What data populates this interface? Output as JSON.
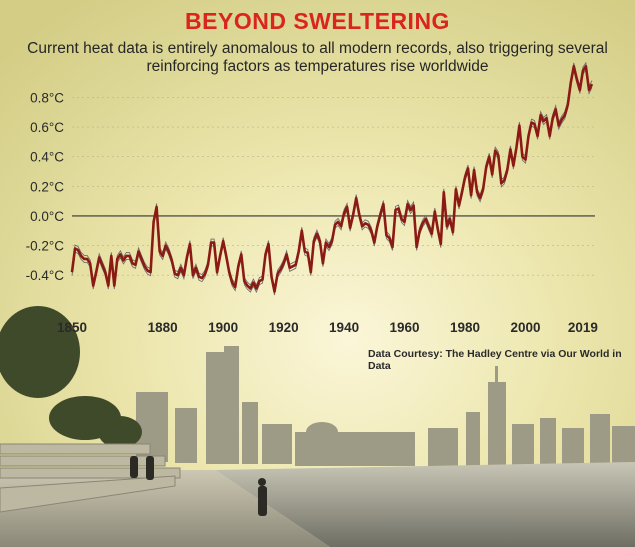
{
  "header": {
    "title": "BEYOND SWELTERING",
    "subtitle": "Current heat data is entirely anomalous to all modern records, also triggering several reinforcing factors as temperatures rise worldwide"
  },
  "credit": "Data Courtesy: The Hadley Centre via Our World in Data",
  "colors": {
    "series": "#8b1a14",
    "band": "#6e6e6e",
    "title": "#d9251d",
    "baseline": "#333333"
  },
  "chart_data": {
    "type": "line",
    "title": "BEYOND SWELTERING",
    "xlabel": "",
    "ylabel": "",
    "xlim": [
      1850,
      2023
    ],
    "ylim": [
      -0.5,
      0.85
    ],
    "baseline": 0.0,
    "grid": true,
    "y_ticks": [
      {
        "value": 0.8,
        "label": "0.8°C"
      },
      {
        "value": 0.6,
        "label": "0.6°C"
      },
      {
        "value": 0.4,
        "label": "0.4°C"
      },
      {
        "value": 0.2,
        "label": "0.2°C"
      },
      {
        "value": 0.0,
        "label": "0.0°C"
      },
      {
        "value": -0.2,
        "label": "-0.2°C"
      },
      {
        "value": -0.4,
        "label": "-0.4°C"
      }
    ],
    "x_ticks": [
      {
        "value": 1850,
        "label": "1850"
      },
      {
        "value": 1880,
        "label": "1880"
      },
      {
        "value": 1900,
        "label": "1900"
      },
      {
        "value": 1920,
        "label": "1920"
      },
      {
        "value": 1940,
        "label": "1940"
      },
      {
        "value": 1960,
        "label": "1960"
      },
      {
        "value": 1980,
        "label": "1980"
      },
      {
        "value": 2000,
        "label": "2000"
      },
      {
        "value": 2019,
        "label": "2019"
      }
    ],
    "series": [
      {
        "x": [
          1850,
          1851,
          1852,
          1853,
          1854,
          1855,
          1856,
          1857,
          1858,
          1859,
          1860,
          1861,
          1862,
          1863,
          1864,
          1865,
          1866,
          1867,
          1868,
          1869,
          1870,
          1871,
          1872,
          1873,
          1874,
          1875,
          1876,
          1877,
          1878,
          1879,
          1880,
          1881,
          1882,
          1883,
          1884,
          1885,
          1886,
          1887,
          1888,
          1889,
          1890,
          1891,
          1892,
          1893,
          1894,
          1895,
          1896,
          1897,
          1898,
          1899,
          1900,
          1901,
          1902,
          1903,
          1904,
          1905,
          1906,
          1907,
          1908,
          1909,
          1910,
          1911,
          1912,
          1913,
          1914,
          1915,
          1916,
          1917,
          1918,
          1919,
          1920,
          1921,
          1922,
          1923,
          1924,
          1925,
          1926,
          1927,
          1928,
          1929,
          1930,
          1931,
          1932,
          1933,
          1934,
          1935,
          1936,
          1937,
          1938,
          1939,
          1940,
          1941,
          1942,
          1943,
          1944,
          1945,
          1946,
          1947,
          1948,
          1949,
          1950,
          1951,
          1952,
          1953,
          1954,
          1955,
          1956,
          1957,
          1958,
          1959,
          1960,
          1961,
          1962,
          1963,
          1964,
          1965,
          1966,
          1967,
          1968,
          1969,
          1970,
          1971,
          1972,
          1973,
          1974,
          1975,
          1976,
          1977,
          1978,
          1979,
          1980,
          1981,
          1982,
          1983,
          1984,
          1985,
          1986,
          1987,
          1988,
          1989,
          1990,
          1991,
          1992,
          1993,
          1994,
          1995,
          1996,
          1997,
          1998,
          1999,
          2000,
          2001,
          2002,
          2003,
          2004,
          2005,
          2006,
          2007,
          2008,
          2009,
          2010,
          2011,
          2012,
          2013,
          2014,
          2015,
          2016,
          2017,
          2018,
          2019,
          2020,
          2021,
          2022
        ],
        "values": [
          -0.38,
          -0.22,
          -0.23,
          -0.27,
          -0.29,
          -0.29,
          -0.32,
          -0.47,
          -0.38,
          -0.28,
          -0.33,
          -0.38,
          -0.47,
          -0.27,
          -0.47,
          -0.29,
          -0.26,
          -0.3,
          -0.27,
          -0.27,
          -0.32,
          -0.33,
          -0.24,
          -0.29,
          -0.34,
          -0.37,
          -0.38,
          -0.04,
          0.06,
          -0.24,
          -0.27,
          -0.2,
          -0.24,
          -0.3,
          -0.39,
          -0.4,
          -0.35,
          -0.4,
          -0.28,
          -0.19,
          -0.4,
          -0.35,
          -0.41,
          -0.42,
          -0.39,
          -0.33,
          -0.18,
          -0.18,
          -0.38,
          -0.27,
          -0.17,
          -0.27,
          -0.38,
          -0.45,
          -0.48,
          -0.34,
          -0.26,
          -0.44,
          -0.47,
          -0.49,
          -0.45,
          -0.49,
          -0.44,
          -0.43,
          -0.26,
          -0.19,
          -0.41,
          -0.51,
          -0.39,
          -0.36,
          -0.32,
          -0.26,
          -0.35,
          -0.34,
          -0.33,
          -0.24,
          -0.1,
          -0.24,
          -0.25,
          -0.38,
          -0.17,
          -0.12,
          -0.17,
          -0.32,
          -0.18,
          -0.21,
          -0.17,
          -0.06,
          -0.04,
          -0.07,
          0.02,
          0.06,
          -0.08,
          0.01,
          0.12,
          0.01,
          -0.07,
          -0.05,
          -0.06,
          -0.1,
          -0.18,
          -0.07,
          0.01,
          0.08,
          -0.13,
          -0.15,
          -0.21,
          0.04,
          0.05,
          -0.02,
          -0.04,
          0.08,
          0.04,
          0.07,
          -0.21,
          -0.1,
          -0.05,
          -0.02,
          -0.07,
          -0.12,
          0.03,
          -0.09,
          -0.19,
          0.16,
          -0.07,
          -0.02,
          -0.11,
          0.18,
          0.07,
          0.16,
          0.26,
          0.32,
          0.14,
          0.31,
          0.16,
          0.12,
          0.18,
          0.33,
          0.4,
          0.28,
          0.44,
          0.41,
          0.22,
          0.24,
          0.31,
          0.45,
          0.34,
          0.46,
          0.61,
          0.4,
          0.38,
          0.54,
          0.63,
          0.62,
          0.54,
          0.68,
          0.64,
          0.66,
          0.54,
          0.66,
          0.72,
          0.61,
          0.65,
          0.68,
          0.75,
          0.9,
          1.01,
          0.92,
          0.85,
          0.98,
          1.01,
          0.85,
          0.89
        ]
      }
    ]
  }
}
